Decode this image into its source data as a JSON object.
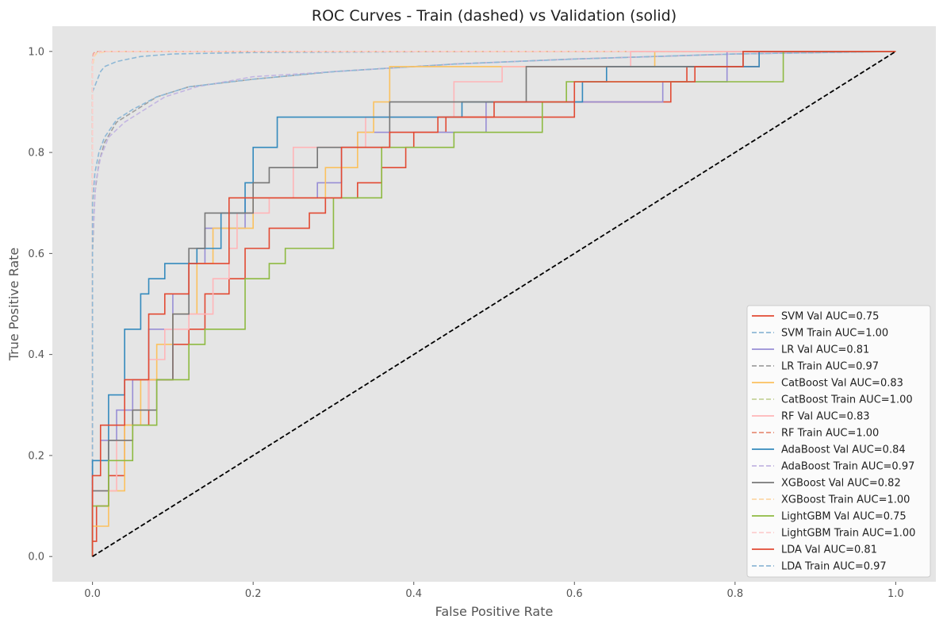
{
  "chart_data": {
    "type": "line",
    "title": "ROC Curves - Train (dashed) vs Validation (solid)",
    "xlabel": "False Positive Rate",
    "ylabel": "True Positive Rate",
    "xlim": [
      -0.05,
      1.05
    ],
    "ylim": [
      -0.05,
      1.05
    ],
    "xticks": [
      "0.0",
      "0.2",
      "0.4",
      "0.6",
      "0.8",
      "1.0"
    ],
    "yticks": [
      "0.0",
      "0.2",
      "0.4",
      "0.6",
      "0.8",
      "1.0"
    ],
    "grid": false,
    "background": "#e5e5e5",
    "legend_position": "lower-right",
    "diagonal": {
      "x": [
        0,
        1
      ],
      "y": [
        0,
        1
      ],
      "color": "#000000",
      "style": "dashed"
    },
    "series": [
      {
        "name": "SVM Val AUC=0.75",
        "style": "solid",
        "color": "#e24a33",
        "x": [
          0,
          0,
          0.005,
          0.005,
          0.02,
          0.02,
          0.04,
          0.04,
          0.07,
          0.07,
          0.1,
          0.1,
          0.12,
          0.12,
          0.14,
          0.14,
          0.17,
          0.17,
          0.19,
          0.19,
          0.22,
          0.22,
          0.27,
          0.27,
          0.29,
          0.29,
          0.33,
          0.33,
          0.36,
          0.36,
          0.39,
          0.39,
          0.4,
          0.4,
          0.44,
          0.44,
          0.45,
          0.45,
          0.51,
          0.51,
          0.6,
          0.6,
          0.72,
          0.72,
          0.74,
          0.74,
          0.79,
          0.79,
          0.83,
          0.83,
          1.0
        ],
        "y": [
          0,
          0.03,
          0.03,
          0.1,
          0.1,
          0.16,
          0.16,
          0.26,
          0.26,
          0.35,
          0.35,
          0.42,
          0.42,
          0.45,
          0.45,
          0.52,
          0.52,
          0.55,
          0.55,
          0.61,
          0.61,
          0.65,
          0.65,
          0.68,
          0.68,
          0.71,
          0.71,
          0.74,
          0.74,
          0.77,
          0.77,
          0.81,
          0.81,
          0.84,
          0.84,
          0.87,
          0.87,
          0.87,
          0.87,
          0.87,
          0.87,
          0.9,
          0.9,
          0.94,
          0.94,
          0.97,
          0.97,
          0.97,
          0.97,
          1.0,
          1.0
        ]
      },
      {
        "name": "SVM Train AUC=1.00",
        "style": "dashed",
        "color": "#8eb8d6",
        "x": [
          0,
          0,
          0.005,
          0.01,
          0.015,
          0.03,
          0.06,
          0.1,
          0.2,
          0.5,
          1.0
        ],
        "y": [
          0,
          0.92,
          0.94,
          0.96,
          0.97,
          0.98,
          0.99,
          0.995,
          0.998,
          1.0,
          1.0
        ]
      },
      {
        "name": "LR Val AUC=0.81",
        "style": "solid",
        "color": "#988ed5",
        "x": [
          0,
          0,
          0.01,
          0.01,
          0.03,
          0.03,
          0.05,
          0.05,
          0.07,
          0.07,
          0.1,
          0.1,
          0.12,
          0.12,
          0.14,
          0.14,
          0.19,
          0.19,
          0.28,
          0.28,
          0.31,
          0.31,
          0.33,
          0.33,
          0.49,
          0.49,
          0.71,
          0.71,
          0.79,
          0.79,
          1.0
        ],
        "y": [
          0,
          0.19,
          0.19,
          0.23,
          0.23,
          0.29,
          0.29,
          0.35,
          0.35,
          0.45,
          0.45,
          0.52,
          0.52,
          0.58,
          0.58,
          0.65,
          0.65,
          0.71,
          0.71,
          0.74,
          0.74,
          0.81,
          0.81,
          0.84,
          0.84,
          0.9,
          0.9,
          0.94,
          0.94,
          1.0,
          1.0
        ]
      },
      {
        "name": "LR Train AUC=0.97",
        "style": "dashed",
        "color": "#a0a0a0",
        "x": [
          0,
          0,
          0.003,
          0.008,
          0.015,
          0.03,
          0.05,
          0.08,
          0.12,
          0.2,
          0.3,
          0.45,
          0.6,
          0.8,
          1.0
        ],
        "y": [
          0,
          0.6,
          0.72,
          0.78,
          0.82,
          0.86,
          0.88,
          0.91,
          0.93,
          0.945,
          0.96,
          0.975,
          0.985,
          0.995,
          1.0
        ]
      },
      {
        "name": "CatBoost Val AUC=0.83",
        "style": "solid",
        "color": "#fbc15e",
        "x": [
          0,
          0,
          0.02,
          0.02,
          0.04,
          0.04,
          0.06,
          0.06,
          0.08,
          0.08,
          0.1,
          0.1,
          0.13,
          0.13,
          0.15,
          0.15,
          0.2,
          0.2,
          0.29,
          0.29,
          0.33,
          0.33,
          0.35,
          0.35,
          0.37,
          0.37,
          0.49,
          0.49,
          0.7,
          0.7,
          1.0
        ],
        "y": [
          0,
          0.06,
          0.06,
          0.13,
          0.13,
          0.26,
          0.26,
          0.35,
          0.35,
          0.42,
          0.42,
          0.48,
          0.48,
          0.58,
          0.58,
          0.65,
          0.65,
          0.71,
          0.71,
          0.77,
          0.77,
          0.84,
          0.84,
          0.9,
          0.9,
          0.97,
          0.97,
          0.97,
          0.97,
          1.0,
          1.0
        ]
      },
      {
        "name": "CatBoost Train AUC=1.00",
        "style": "dashed",
        "color": "#c5d39a",
        "x": [
          0,
          0,
          0.002,
          0.005,
          0.02,
          1.0
        ],
        "y": [
          0,
          0.97,
          0.99,
          0.997,
          1.0,
          1.0
        ]
      },
      {
        "name": "RF Val AUC=0.83",
        "style": "solid",
        "color": "#ffb5b8",
        "x": [
          0,
          0,
          0.03,
          0.03,
          0.05,
          0.05,
          0.07,
          0.07,
          0.09,
          0.09,
          0.12,
          0.12,
          0.15,
          0.15,
          0.17,
          0.17,
          0.18,
          0.18,
          0.22,
          0.22,
          0.25,
          0.25,
          0.34,
          0.34,
          0.45,
          0.45,
          0.51,
          0.51,
          0.67,
          0.67,
          1.0
        ],
        "y": [
          0,
          0.13,
          0.13,
          0.23,
          0.23,
          0.29,
          0.29,
          0.39,
          0.39,
          0.45,
          0.45,
          0.48,
          0.48,
          0.55,
          0.55,
          0.61,
          0.61,
          0.68,
          0.68,
          0.71,
          0.71,
          0.81,
          0.81,
          0.87,
          0.87,
          0.94,
          0.94,
          0.97,
          0.97,
          1.0,
          1.0
        ]
      },
      {
        "name": "RF Train AUC=1.00",
        "style": "dashed",
        "color": "#e8907a",
        "x": [
          0,
          0,
          0.001,
          0.003,
          0.01,
          1.0
        ],
        "y": [
          0,
          0.98,
          0.995,
          0.999,
          1.0,
          1.0
        ]
      },
      {
        "name": "AdaBoost Val AUC=0.84",
        "style": "solid",
        "color": "#348abd",
        "x": [
          0,
          0,
          0.02,
          0.02,
          0.04,
          0.04,
          0.06,
          0.06,
          0.07,
          0.07,
          0.09,
          0.09,
          0.13,
          0.13,
          0.16,
          0.16,
          0.19,
          0.19,
          0.2,
          0.2,
          0.23,
          0.23,
          0.46,
          0.46,
          0.61,
          0.61,
          0.64,
          0.64,
          0.83,
          0.83,
          1.0
        ],
        "y": [
          0,
          0.19,
          0.19,
          0.32,
          0.32,
          0.45,
          0.45,
          0.52,
          0.52,
          0.55,
          0.55,
          0.58,
          0.58,
          0.61,
          0.61,
          0.68,
          0.68,
          0.74,
          0.74,
          0.81,
          0.81,
          0.87,
          0.87,
          0.9,
          0.9,
          0.94,
          0.94,
          0.97,
          0.97,
          1.0,
          1.0
        ]
      },
      {
        "name": "AdaBoost Train AUC=0.97",
        "style": "dashed",
        "color": "#c3b6e2",
        "x": [
          0,
          0,
          0.004,
          0.01,
          0.02,
          0.04,
          0.06,
          0.09,
          0.13,
          0.2,
          0.3,
          0.45,
          0.6,
          0.8,
          1.0
        ],
        "y": [
          0,
          0.62,
          0.74,
          0.79,
          0.83,
          0.86,
          0.88,
          0.91,
          0.93,
          0.95,
          0.96,
          0.975,
          0.985,
          0.995,
          1.0
        ]
      },
      {
        "name": "XGBoost Val AUC=0.82",
        "style": "solid",
        "color": "#777777",
        "x": [
          0,
          0,
          0.02,
          0.02,
          0.05,
          0.05,
          0.08,
          0.08,
          0.1,
          0.1,
          0.12,
          0.12,
          0.14,
          0.14,
          0.2,
          0.2,
          0.22,
          0.22,
          0.28,
          0.28,
          0.37,
          0.37,
          0.54,
          0.54,
          0.81,
          0.81,
          1.0
        ],
        "y": [
          0,
          0.13,
          0.13,
          0.23,
          0.23,
          0.29,
          0.29,
          0.35,
          0.35,
          0.48,
          0.48,
          0.61,
          0.61,
          0.68,
          0.68,
          0.74,
          0.74,
          0.77,
          0.77,
          0.81,
          0.81,
          0.9,
          0.9,
          0.97,
          0.97,
          1.0,
          1.0
        ]
      },
      {
        "name": "XGBoost Train AUC=1.00",
        "style": "dashed",
        "color": "#fdd7a8",
        "x": [
          0,
          0,
          0.002,
          0.006,
          0.02,
          1.0
        ],
        "y": [
          0,
          0.97,
          0.99,
          0.997,
          1.0,
          1.0
        ]
      },
      {
        "name": "LightGBM Val AUC=0.75",
        "style": "solid",
        "color": "#8eba42",
        "x": [
          0,
          0,
          0.02,
          0.02,
          0.05,
          0.05,
          0.08,
          0.08,
          0.12,
          0.12,
          0.14,
          0.14,
          0.19,
          0.19,
          0.22,
          0.22,
          0.24,
          0.24,
          0.3,
          0.3,
          0.36,
          0.36,
          0.45,
          0.45,
          0.56,
          0.56,
          0.59,
          0.59,
          0.86,
          0.86,
          1.0
        ],
        "y": [
          0,
          0.1,
          0.1,
          0.19,
          0.19,
          0.26,
          0.26,
          0.35,
          0.35,
          0.42,
          0.42,
          0.45,
          0.45,
          0.55,
          0.55,
          0.58,
          0.58,
          0.61,
          0.61,
          0.71,
          0.71,
          0.81,
          0.81,
          0.84,
          0.84,
          0.9,
          0.9,
          0.94,
          0.94,
          1.0,
          1.0
        ]
      },
      {
        "name": "LightGBM Train AUC=1.00",
        "style": "dashed",
        "color": "#fccfd0",
        "x": [
          0,
          0,
          0.002,
          0.006,
          0.02,
          1.0
        ],
        "y": [
          0,
          0.98,
          0.995,
          0.999,
          1.0,
          1.0
        ]
      },
      {
        "name": "LDA Val AUC=0.81",
        "style": "solid",
        "color": "#e24a33",
        "x": [
          0,
          0,
          0.01,
          0.01,
          0.04,
          0.04,
          0.07,
          0.07,
          0.09,
          0.09,
          0.12,
          0.12,
          0.17,
          0.17,
          0.2,
          0.2,
          0.31,
          0.31,
          0.37,
          0.37,
          0.43,
          0.43,
          0.5,
          0.5,
          0.6,
          0.6,
          0.75,
          0.75,
          0.81,
          0.81,
          1.0
        ],
        "y": [
          0,
          0.16,
          0.16,
          0.26,
          0.26,
          0.35,
          0.35,
          0.48,
          0.48,
          0.52,
          0.52,
          0.58,
          0.58,
          0.71,
          0.71,
          0.71,
          0.71,
          0.81,
          0.81,
          0.84,
          0.84,
          0.87,
          0.87,
          0.9,
          0.9,
          0.94,
          0.94,
          0.97,
          0.97,
          1.0,
          1.0
        ]
      },
      {
        "name": "LDA Train AUC=0.97",
        "style": "dashed",
        "color": "#8eb8d6",
        "x": [
          0,
          0,
          0.003,
          0.008,
          0.015,
          0.03,
          0.05,
          0.08,
          0.12,
          0.2,
          0.3,
          0.45,
          0.6,
          0.8,
          1.0
        ],
        "y": [
          0,
          0.7,
          0.76,
          0.8,
          0.83,
          0.865,
          0.885,
          0.91,
          0.93,
          0.945,
          0.96,
          0.975,
          0.985,
          0.995,
          1.0
        ]
      }
    ]
  }
}
